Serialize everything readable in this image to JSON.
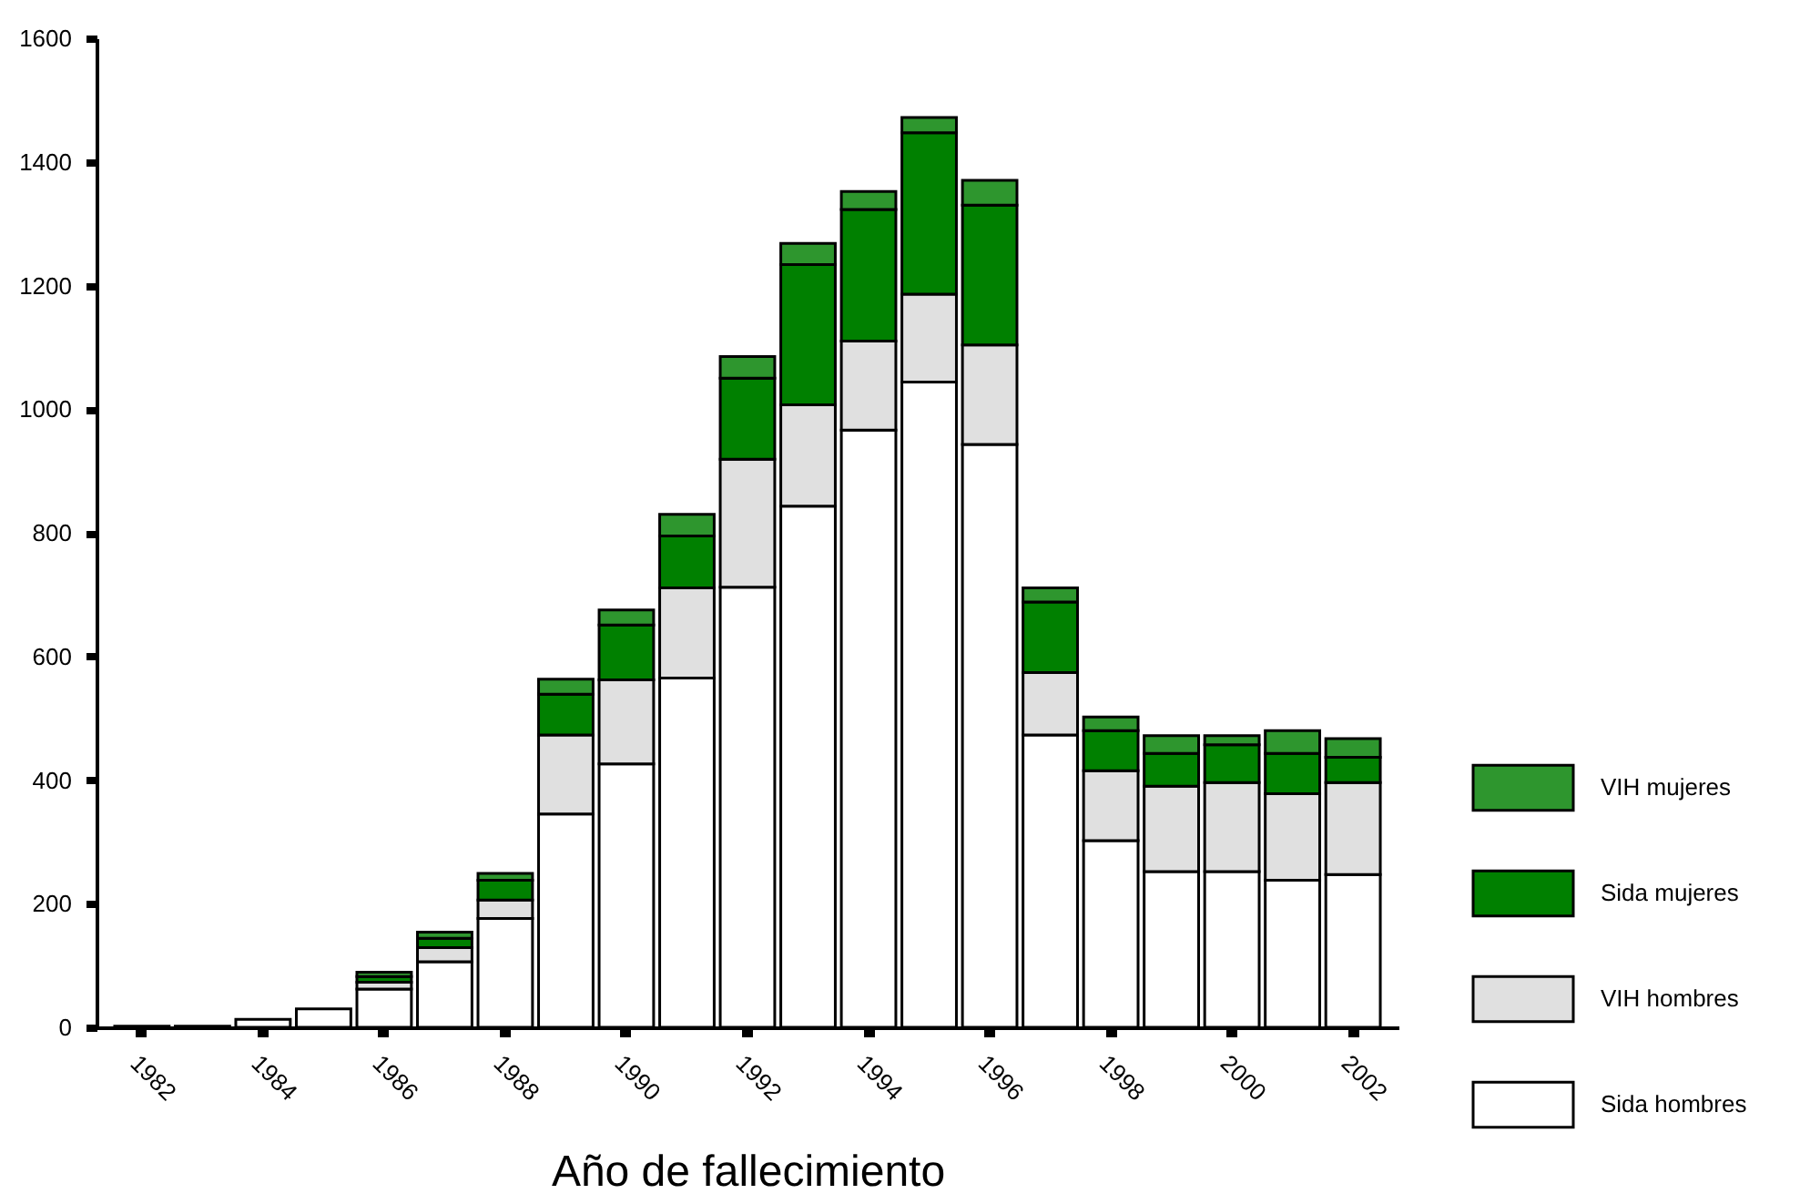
{
  "chart_data": {
    "type": "bar",
    "stacked": true,
    "xlabel": "Año de fallecimiento",
    "categories": [
      "1982",
      null,
      "1984",
      null,
      "1986",
      null,
      "1988",
      null,
      "1990",
      null,
      "1992",
      null,
      "1994",
      null,
      "1996",
      null,
      "1998",
      null,
      "2000",
      null,
      "2002"
    ],
    "series": [
      {
        "name": "Sida hombres",
        "color": "#ffffff",
        "values": [
          2,
          2,
          13,
          30,
          62,
          106,
          176,
          345,
          426,
          565,
          712,
          843,
          966,
          1044,
          943,
          473,
          302,
          252,
          252,
          238,
          247
        ]
      },
      {
        "name": "VIH hombres",
        "color": "#e0e0e0",
        "values": [
          0,
          0,
          0,
          0,
          11,
          23,
          30,
          128,
          136,
          146,
          207,
          164,
          144,
          142,
          161,
          101,
          113,
          138,
          144,
          140,
          149
        ]
      },
      {
        "name": "Sida mujeres",
        "color": "#008000",
        "values": [
          0,
          0,
          0,
          0,
          9,
          15,
          32,
          66,
          89,
          84,
          131,
          227,
          213,
          261,
          226,
          114,
          65,
          53,
          61,
          65,
          41
        ]
      },
      {
        "name": "VIH mujeres",
        "color": "#2e962e",
        "values": [
          0,
          0,
          0,
          0,
          7,
          10,
          11,
          24,
          24,
          35,
          35,
          34,
          29,
          25,
          40,
          23,
          22,
          29,
          15,
          37,
          30
        ]
      }
    ],
    "ylim": [
      0,
      1600
    ],
    "yticks": [
      0,
      200,
      400,
      600,
      800,
      1000,
      1200,
      1400,
      1600
    ],
    "grid": false,
    "legend": "right"
  }
}
